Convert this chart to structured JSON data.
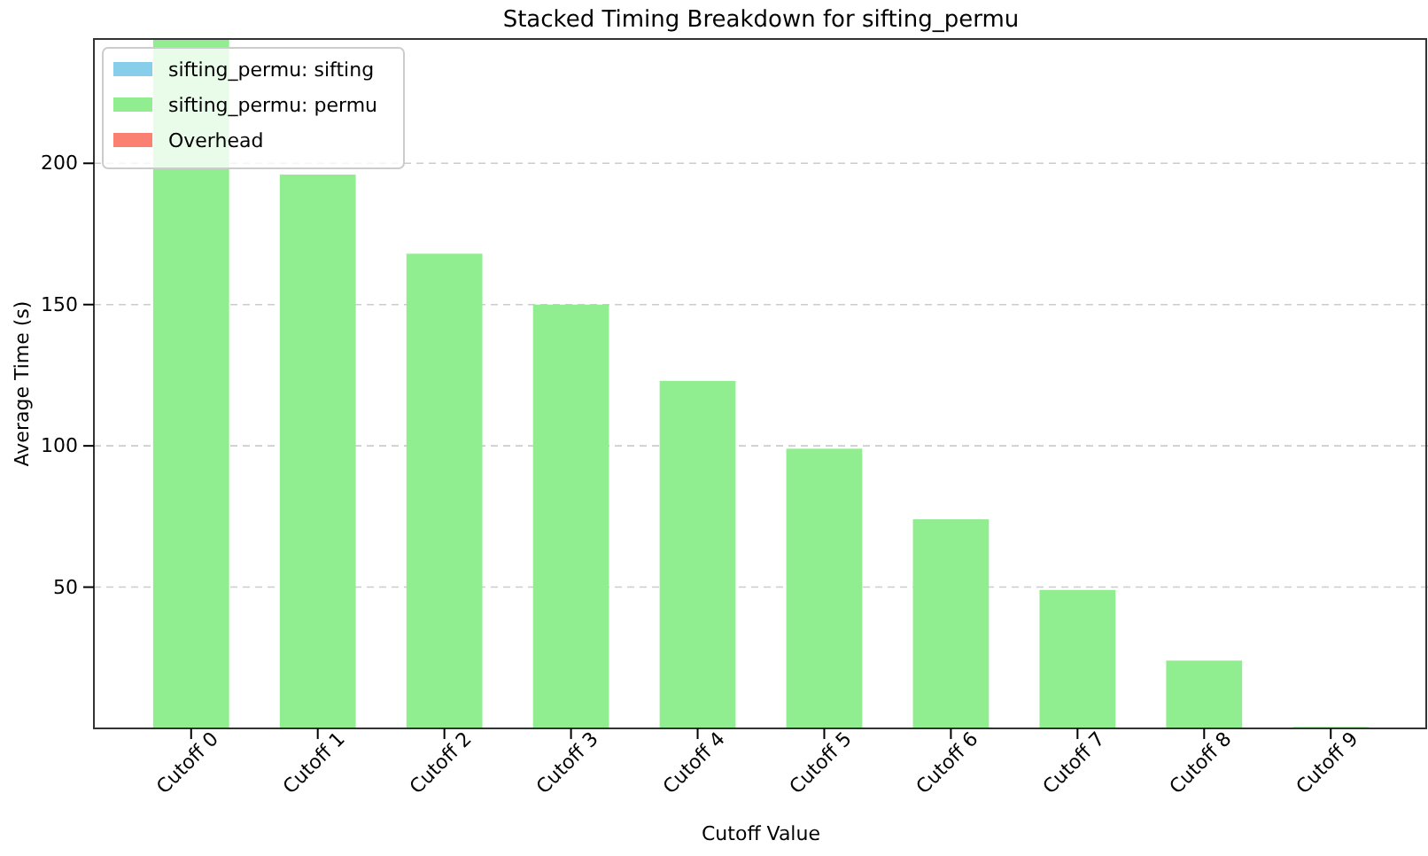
{
  "chart_data": {
    "type": "bar",
    "title": "Stacked Timing Breakdown for sifting_permu",
    "xlabel": "Cutoff Value",
    "ylabel": "Average Time (s)",
    "categories": [
      "Cutoff 0",
      "Cutoff 1",
      "Cutoff 2",
      "Cutoff 3",
      "Cutoff 4",
      "Cutoff 5",
      "Cutoff 6",
      "Cutoff 7",
      "Cutoff 8",
      "Cutoff 9"
    ],
    "stacked": true,
    "series": [
      {
        "name": "sifting_permu: sifting",
        "color": "#87ceeb",
        "values": [
          0,
          0,
          0,
          0,
          0,
          0,
          0,
          0,
          0,
          0
        ]
      },
      {
        "name": "sifting_permu: permu",
        "color": "#90ee90",
        "values": [
          244,
          196,
          168,
          150,
          123,
          99,
          74,
          49,
          24,
          0.5
        ]
      },
      {
        "name": "Overhead",
        "color": "#fa8072",
        "values": [
          0,
          0,
          0,
          0,
          0,
          0,
          0,
          0,
          0,
          0
        ]
      }
    ],
    "ylim": [
      0,
      244
    ],
    "yticks": [
      50,
      100,
      150,
      200
    ],
    "grid": "y",
    "legend": "top left"
  }
}
